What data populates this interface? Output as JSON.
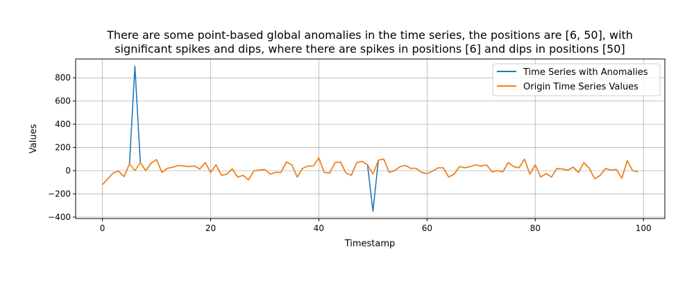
{
  "chart_data": {
    "type": "line",
    "title_lines": [
      "There are some point-based global anomalies in the time series, the positions are [6, 50], with",
      "significant spikes and dips, where there are spikes in positions [6] and dips in positions [50]"
    ],
    "xlabel": "Timestamp",
    "ylabel": "Values",
    "xlim": [
      -4.95,
      103.95
    ],
    "ylim": [
      -412.5,
      962.5
    ],
    "xticks": [
      0,
      20,
      40,
      60,
      80,
      100
    ],
    "yticks": [
      -400,
      -200,
      0,
      200,
      400,
      600,
      800
    ],
    "grid": true,
    "legend_position": "top-right",
    "series": [
      {
        "name": "Time Series with Anomalies",
        "color": "#1f77b4",
        "values": [
          -120,
          -70,
          -20,
          -5,
          -50,
          60,
          900,
          70,
          0,
          65,
          95,
          -15,
          20,
          30,
          45,
          40,
          35,
          40,
          15,
          70,
          -15,
          50,
          -40,
          -30,
          15,
          -55,
          -40,
          -80,
          0,
          5,
          10,
          -30,
          -15,
          -15,
          75,
          50,
          -55,
          20,
          40,
          40,
          110,
          -15,
          -20,
          70,
          75,
          -20,
          -40,
          70,
          80,
          50,
          -350,
          90,
          100,
          -15,
          0,
          35,
          45,
          20,
          20,
          -15,
          -25,
          -5,
          25,
          25,
          -55,
          -30,
          35,
          25,
          35,
          50,
          40,
          50,
          -10,
          0,
          -10,
          70,
          35,
          25,
          100,
          -30,
          50,
          -55,
          -25,
          -55,
          20,
          15,
          5,
          30,
          -15,
          70,
          20,
          -70,
          -40,
          20,
          5,
          10,
          -65,
          85,
          0,
          -10
        ]
      },
      {
        "name": "Origin Time Series Values",
        "color": "#ff7f0e",
        "values": [
          -120,
          -70,
          -20,
          -5,
          -50,
          60,
          0,
          70,
          0,
          65,
          95,
          -15,
          20,
          30,
          45,
          40,
          35,
          40,
          15,
          70,
          -15,
          50,
          -40,
          -30,
          15,
          -55,
          -40,
          -80,
          0,
          5,
          10,
          -30,
          -15,
          -15,
          75,
          50,
          -55,
          20,
          40,
          40,
          110,
          -15,
          -20,
          70,
          75,
          -20,
          -40,
          70,
          80,
          50,
          -30,
          90,
          100,
          -15,
          0,
          35,
          45,
          20,
          20,
          -15,
          -25,
          -5,
          25,
          25,
          -55,
          -30,
          35,
          25,
          35,
          50,
          40,
          50,
          -10,
          0,
          -10,
          70,
          35,
          25,
          100,
          -30,
          50,
          -55,
          -25,
          -55,
          20,
          15,
          5,
          30,
          -15,
          70,
          20,
          -70,
          -40,
          20,
          5,
          10,
          -65,
          85,
          0,
          -10
        ]
      }
    ]
  }
}
